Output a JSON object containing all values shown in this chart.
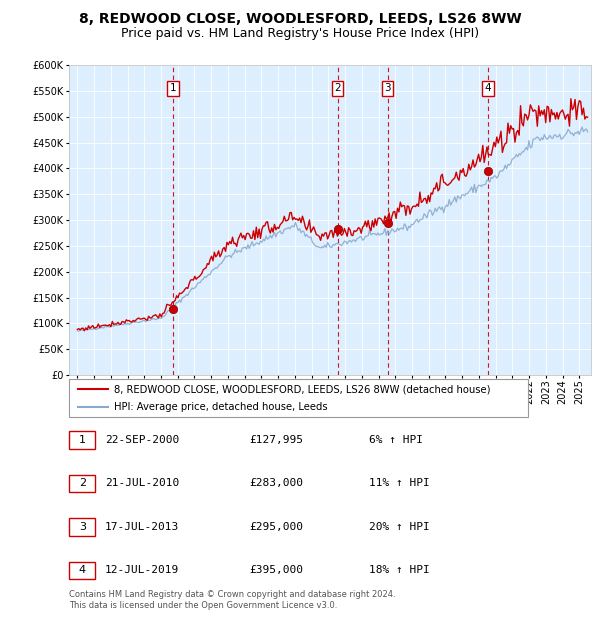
{
  "title": "8, REDWOOD CLOSE, WOODLESFORD, LEEDS, LS26 8WW",
  "subtitle": "Price paid vs. HM Land Registry's House Price Index (HPI)",
  "legend_line1": "8, REDWOOD CLOSE, WOODLESFORD, LEEDS, LS26 8WW (detached house)",
  "legend_line2": "HPI: Average price, detached house, Leeds",
  "footnote1": "Contains HM Land Registry data © Crown copyright and database right 2024.",
  "footnote2": "This data is licensed under the Open Government Licence v3.0.",
  "transactions": [
    {
      "num": 1,
      "date": "22-SEP-2000",
      "price": 127995,
      "pct": "6%",
      "dir": "↑",
      "year": 2000.73
    },
    {
      "num": 2,
      "date": "21-JUL-2010",
      "price": 283000,
      "pct": "11%",
      "dir": "↑",
      "year": 2010.55
    },
    {
      "num": 3,
      "date": "17-JUL-2013",
      "price": 295000,
      "pct": "20%",
      "dir": "↑",
      "year": 2013.54
    },
    {
      "num": 4,
      "date": "12-JUL-2019",
      "price": 395000,
      "pct": "18%",
      "dir": "↑",
      "year": 2019.53
    }
  ],
  "ylim": [
    0,
    600000
  ],
  "xlim_start": 1994.5,
  "xlim_end": 2025.7,
  "red_color": "#cc0000",
  "blue_color": "#88aacc",
  "bg_color": "#ddeeff",
  "grid_color": "#ffffff",
  "dashed_color": "#cc0000",
  "box_color": "#cc0000",
  "title_fontsize": 10,
  "subtitle_fontsize": 9,
  "tick_fontsize": 7
}
